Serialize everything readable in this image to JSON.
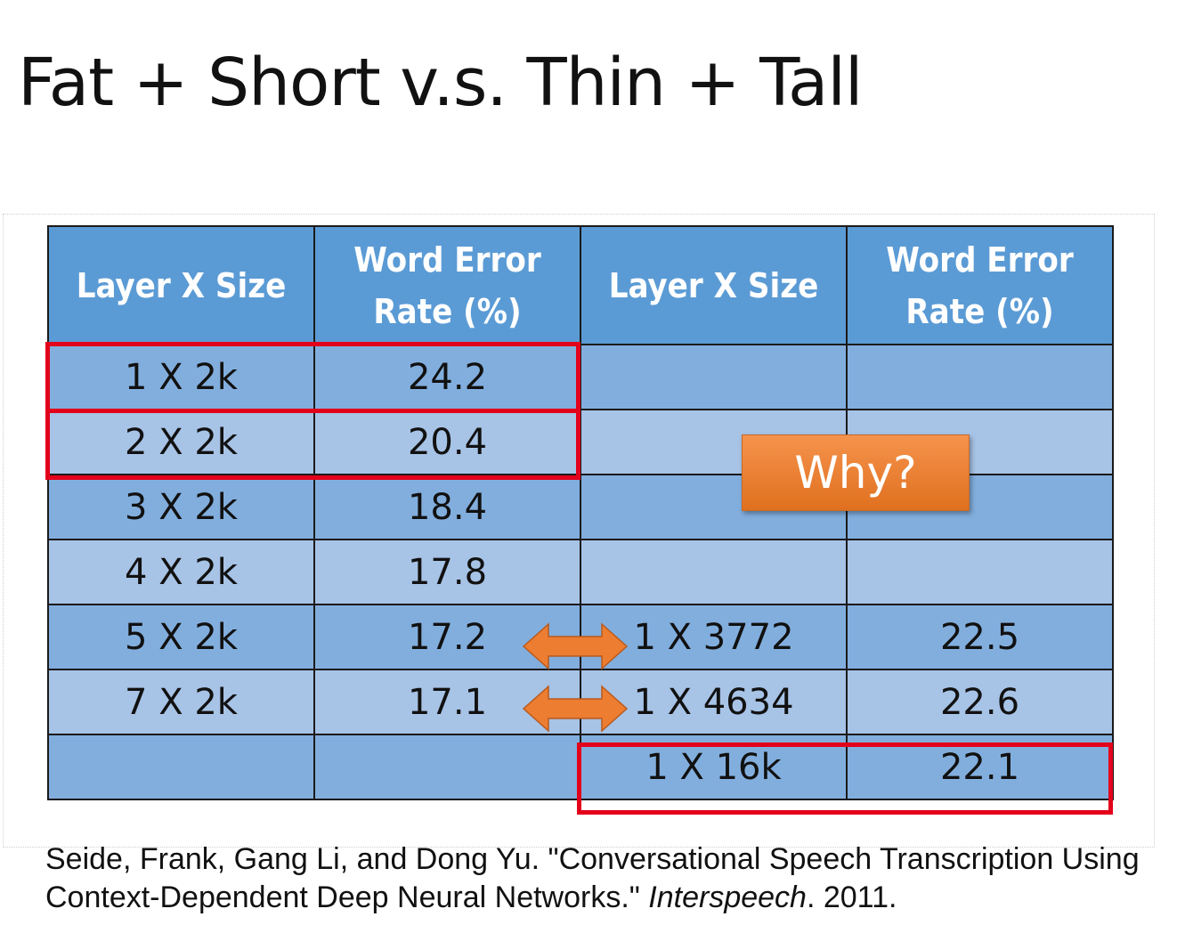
{
  "slide": {
    "title": "Fat + Short v.s. Thin + Tall"
  },
  "table": {
    "headers": [
      "Layer X Size",
      "Word Error Rate (%)",
      "Layer X Size",
      "Word Error Rate (%)"
    ],
    "rows": [
      [
        "1 X 2k",
        "24.2",
        "",
        ""
      ],
      [
        "2 X 2k",
        "20.4",
        "",
        ""
      ],
      [
        "3 X 2k",
        "18.4",
        "",
        ""
      ],
      [
        "4 X 2k",
        "17.8",
        "",
        ""
      ],
      [
        "5 X 2k",
        "17.2",
        "1 X 3772",
        "22.5"
      ],
      [
        "7 X 2k",
        "17.1",
        "1 X 4634",
        "22.6"
      ],
      [
        "",
        "",
        "1 X 16k",
        "22.1"
      ]
    ]
  },
  "callout": {
    "label": "Why?",
    "color": "#ed7d31"
  },
  "colors": {
    "header_bg": "#5b9bd5",
    "row_dark": "#82aedd",
    "row_light": "#a7c3e6",
    "highlight_border": "#e3001b",
    "arrow": "#ed7d31"
  },
  "citation": {
    "text_before": "Seide, Frank, Gang Li, and Dong Yu. \"Conversational Speech Transcription Using Context-Dependent Deep Neural Networks.\" ",
    "venue": "Interspeech",
    "text_after": ". 2011."
  }
}
